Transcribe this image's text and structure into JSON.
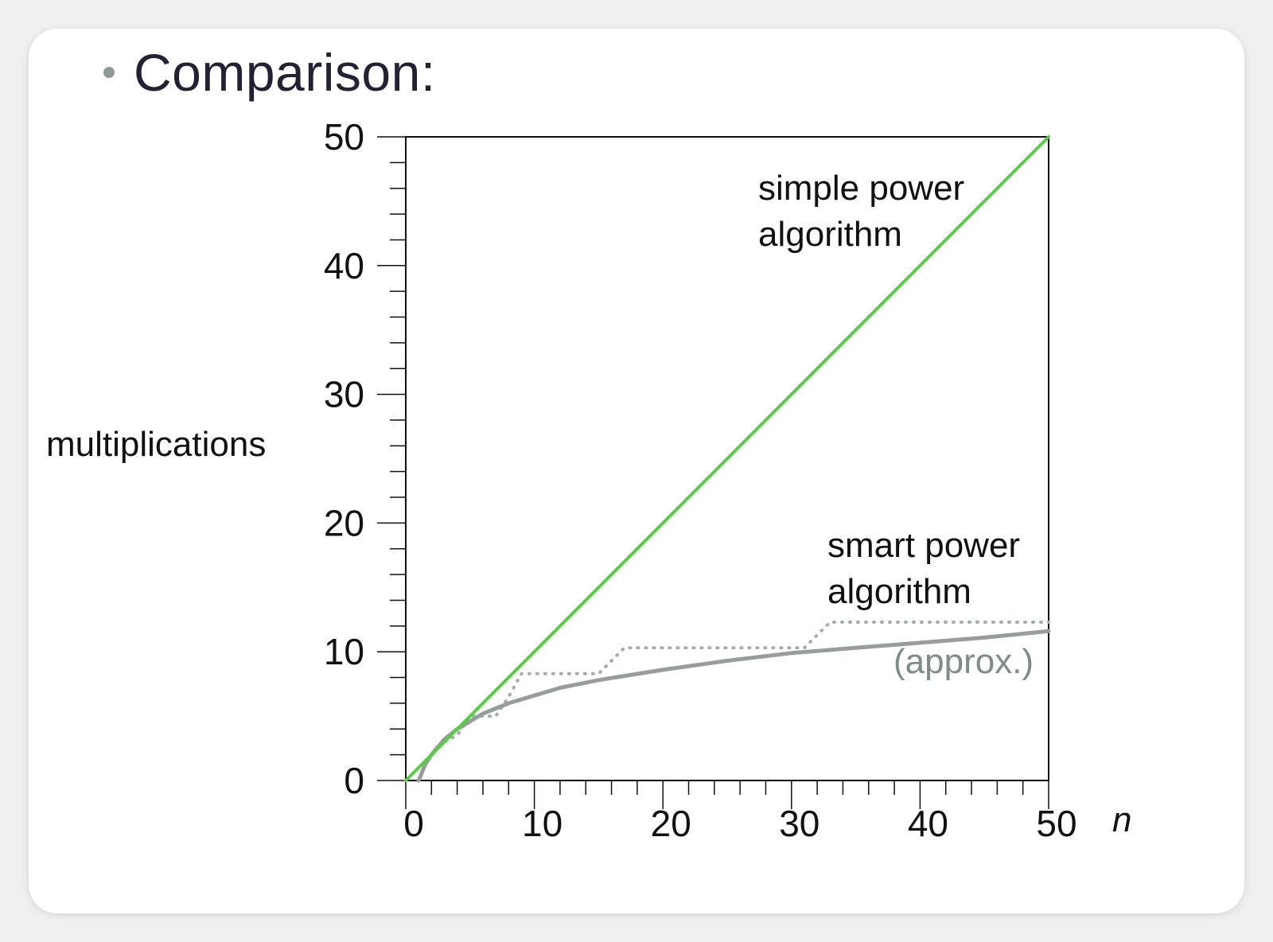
{
  "slide": {
    "bullet_title": "Comparison:"
  },
  "chart_data": {
    "type": "line",
    "ylabel": "multiplications",
    "xlabel": "n",
    "xlim": [
      0,
      50
    ],
    "ylim": [
      0,
      50
    ],
    "x_ticks": [
      0,
      10,
      20,
      30,
      40,
      50
    ],
    "y_ticks": [
      0,
      10,
      20,
      30,
      40,
      50
    ],
    "annotations": {
      "simple": [
        "simple power",
        "algorithm"
      ],
      "smart": [
        "smart power",
        "algorithm"
      ],
      "approx": "(approx.)"
    },
    "series": [
      {
        "key": "simple",
        "style": "solid",
        "color": "#5bc94a",
        "x": [
          0,
          50
        ],
        "y": [
          0,
          50
        ]
      },
      {
        "key": "smart_exact",
        "style": "dotted",
        "color": "#a6ada9",
        "x": [
          0,
          1,
          2,
          3,
          4,
          5,
          7,
          8,
          9,
          15,
          16,
          17,
          31,
          32,
          33,
          50
        ],
        "y": [
          0,
          1,
          2,
          3,
          3.5,
          5,
          5,
          6.5,
          8.3,
          8.3,
          9.3,
          10.3,
          10.3,
          11.3,
          12.3,
          12.3
        ]
      },
      {
        "key": "smart_approx",
        "style": "solid",
        "color": "#979e9a",
        "x": [
          1,
          1.5,
          2,
          3,
          4,
          5,
          6,
          8,
          10,
          12,
          15,
          20,
          25,
          30,
          35,
          40,
          45,
          50
        ],
        "y": [
          0,
          1.2,
          2.0,
          3.2,
          4.0,
          4.6,
          5.2,
          6.0,
          6.6,
          7.2,
          7.8,
          8.6,
          9.3,
          9.9,
          10.3,
          10.7,
          11.1,
          11.6
        ]
      }
    ],
    "colors": {
      "simple": "#5bc94a",
      "smart": "#979e9a",
      "approx_text": "#7d8c85",
      "axis": "#111111"
    }
  }
}
